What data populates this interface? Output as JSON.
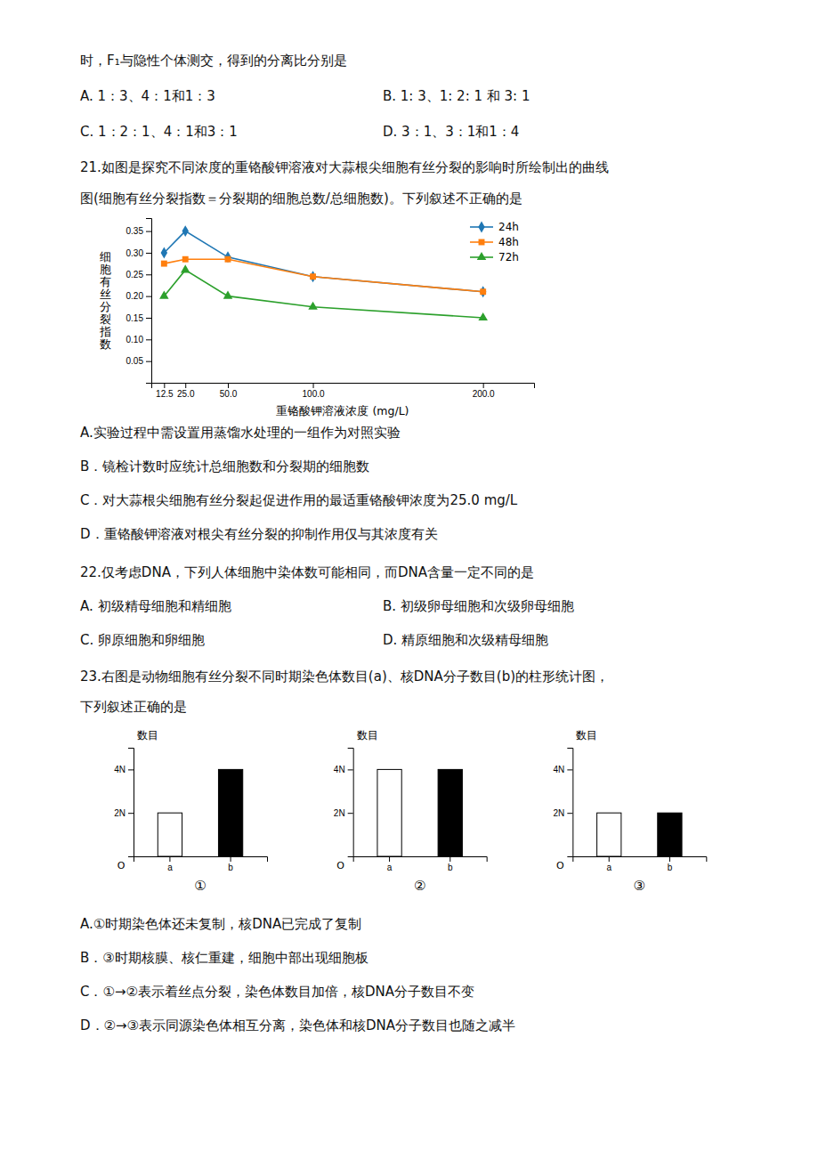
{
  "annotations": [
    "时，F₁与隐性个体测交，得到的分离比分别是",
    "A. 1：3、4：1和1：3",
    "B. 1: 3、1: 2: 1 和 3: 1",
    "C. 1：2：1、4：1和3：1",
    "D. 3：1、3：1和1：4",
    "21.如图是探究不同浓度的重铬酸钾溶液对大蒜根尖细胞有丝分裂的影响时所绘制出的曲线",
    "图(细胞有丝分裂指数＝分裂期的细胞总数/总细胞数)。下列叙述不正确的是",
    "A.实验过程中需设置用蒸馏水处理的一组作为对照实验",
    "B．镜检计数时应统计总细胞数和分裂期的细胞数",
    "C．对大蒜根尖细胞有丝分裂起促进作用的最适重铬酸钾浓度为25.0 mg/L",
    "D．重铬酸钾溶液对根尖有丝分裂的抑制作用仅与其浓度有关",
    "22.仅考虑DNA，下列人体细胞中染体数可能相同，而DNA含量一定不同的是",
    "A. 初级精母细胞和精细胞",
    "B. 初级卵母细胞和次级卵母细胞",
    "C. 卵原细胞和卵细胞",
    "D. 精原细胞和次级精母细胞",
    "23.右图是动物细胞有丝分裂不同时期染色体数目(a)、核DNA分子数目(b)的柱形统计图，",
    "下列叙述正确的是",
    "A.①时期染色体还未复制，核DNA已完成了复制",
    "B．③时期核膜、核仁重建，细胞中部出现细胞板",
    "C．①→②表示着丝点分裂，染色体数目加倍，核DNA分子数目不变",
    "D．②→③表示同源染色体相互分离，染色体和核DNA分子数目也随之减半"
  ],
  "chart_data": [
    {
      "type": "line",
      "xlabel": "重铬酸钾溶液浓度 (mg/L)",
      "ylabel": "细胞有丝分裂指数",
      "x": [
        12.5,
        25.0,
        50.0,
        100.0,
        200.0
      ],
      "xlim": [
        5,
        230
      ],
      "xticks": [
        12.5,
        {
          "value": 25.0,
          "label": "25.0"
        },
        {
          "value": 50.0,
          "label": "50.0"
        },
        {
          "value": 100.0,
          "label": "100.0"
        },
        {
          "value": 200.0,
          "label": "200.0"
        }
      ],
      "ylim": [
        0,
        0.38
      ],
      "yticks": [
        0.05,
        {
          "value": 0.1,
          "label": "0.10"
        },
        0.15,
        {
          "value": 0.2,
          "label": "0.20"
        },
        0.25,
        {
          "value": 0.3,
          "label": "0.30"
        },
        0.35
      ],
      "legend": "upper right",
      "series": [
        {
          "name": "24h",
          "marker": "diamond",
          "values": [
            0.3,
            0.35,
            0.29,
            0.245,
            0.21
          ]
        },
        {
          "name": "48h",
          "marker": "square",
          "values": [
            0.275,
            0.285,
            0.285,
            0.245,
            0.21
          ]
        },
        {
          "name": "72h",
          "marker": "triangle",
          "values": [
            0.2,
            0.26,
            0.2,
            0.175,
            0.15
          ]
        }
      ]
    },
    {
      "type": "bar",
      "title": "①",
      "ylabel": "数目",
      "annotations": [
        "O"
      ],
      "categories": [
        "a",
        "b"
      ],
      "values": [
        2,
        4
      ],
      "colors": [
        "#ffffff",
        "#000000"
      ],
      "ylim": [
        0,
        5.0
      ],
      "yticks": [
        {
          "value": 2,
          "label": "2N"
        },
        {
          "value": 4,
          "label": "4N"
        }
      ]
    },
    {
      "type": "bar",
      "title": "②",
      "ylabel": "数目",
      "annotations": [
        "O"
      ],
      "categories": [
        "a",
        "b"
      ],
      "values": [
        4,
        4
      ],
      "colors": [
        "#ffffff",
        "#000000"
      ],
      "ylim": [
        0,
        5.0
      ],
      "yticks": [
        {
          "value": 2,
          "label": "2N"
        },
        {
          "value": 4,
          "label": "4N"
        }
      ]
    },
    {
      "type": "bar",
      "title": "③",
      "ylabel": "数目",
      "annotations": [
        "O"
      ],
      "categories": [
        "a",
        "b"
      ],
      "values": [
        2,
        2
      ],
      "colors": [
        "#ffffff",
        "#000000"
      ],
      "ylim": [
        0,
        5.0
      ],
      "yticks": [
        {
          "value": 2,
          "label": "2N"
        },
        {
          "value": 4,
          "label": "4N"
        }
      ]
    }
  ]
}
